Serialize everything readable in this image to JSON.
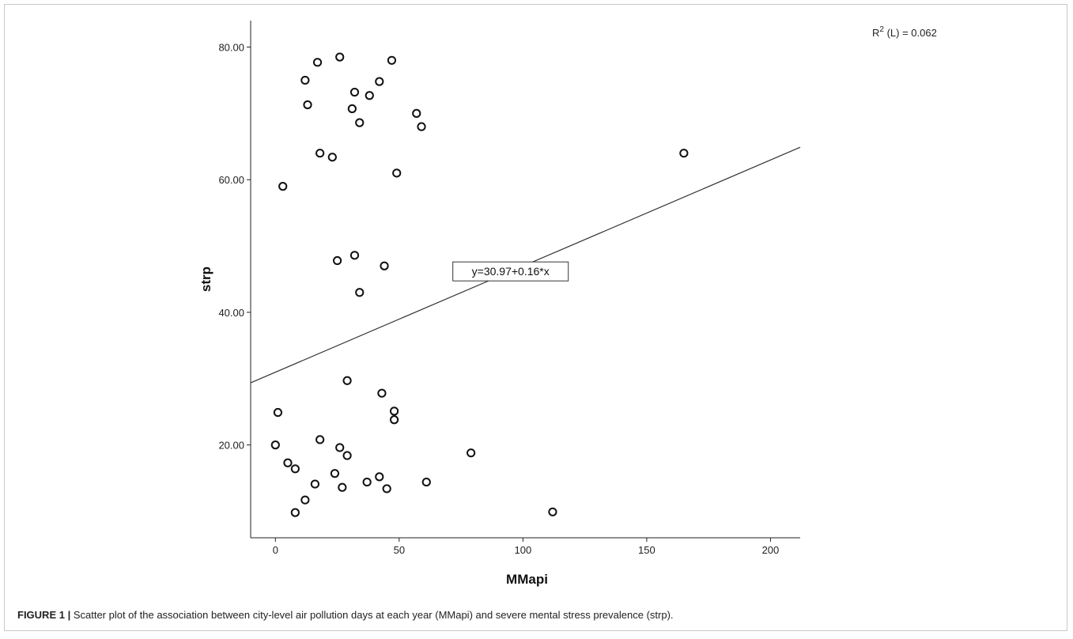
{
  "chart_data": {
    "type": "scatter",
    "xlabel": "MMapi",
    "ylabel": "strp",
    "xlim": [
      -10,
      212
    ],
    "ylim": [
      6,
      84
    ],
    "x_ticks": [
      0,
      50,
      100,
      150,
      200
    ],
    "y_ticks": [
      20,
      40,
      60,
      80
    ],
    "x_tick_labels": [
      "0",
      "50",
      "100",
      "150",
      "200"
    ],
    "y_tick_labels": [
      "20.00",
      "40.00",
      "60.00",
      "80.00"
    ],
    "grid": false,
    "marker": "open-circle",
    "r2_text": "(L) = 0.062",
    "r2_prefix": "R",
    "r2_sup": "2",
    "fit": {
      "intercept": 30.97,
      "slope": 0.16,
      "label": "y=30.97+0.16*x",
      "label_anchor_x": 95
    },
    "points": [
      [
        26,
        78.5
      ],
      [
        47,
        78
      ],
      [
        17,
        77.7
      ],
      [
        12,
        75
      ],
      [
        42,
        74.8
      ],
      [
        32,
        73.2
      ],
      [
        38,
        72.7
      ],
      [
        13,
        71.3
      ],
      [
        31,
        70.7
      ],
      [
        57,
        70
      ],
      [
        34,
        68.6
      ],
      [
        59,
        68
      ],
      [
        18,
        64
      ],
      [
        23,
        63.4
      ],
      [
        165,
        64
      ],
      [
        49,
        61
      ],
      [
        3,
        59
      ],
      [
        32,
        48.6
      ],
      [
        25,
        47.8
      ],
      [
        44,
        47
      ],
      [
        34,
        43
      ],
      [
        29,
        29.7
      ],
      [
        43,
        27.8
      ],
      [
        1,
        24.9
      ],
      [
        48,
        25.1
      ],
      [
        48,
        23.8
      ],
      [
        18,
        20.8
      ],
      [
        0,
        20
      ],
      [
        26,
        19.6
      ],
      [
        29,
        18.4
      ],
      [
        79,
        18.8
      ],
      [
        5,
        17.3
      ],
      [
        8,
        16.4
      ],
      [
        24,
        15.7
      ],
      [
        42,
        15.2
      ],
      [
        16,
        14.1
      ],
      [
        37,
        14.4
      ],
      [
        61,
        14.4
      ],
      [
        27,
        13.6
      ],
      [
        45,
        13.4
      ],
      [
        12,
        11.7
      ],
      [
        8,
        9.8
      ],
      [
        112,
        9.9
      ]
    ]
  },
  "caption": {
    "label": "FIGURE 1 |",
    "text": " Scatter plot of the association between city-level air pollution days at each year (MMapi) and severe mental stress prevalence (strp)."
  }
}
